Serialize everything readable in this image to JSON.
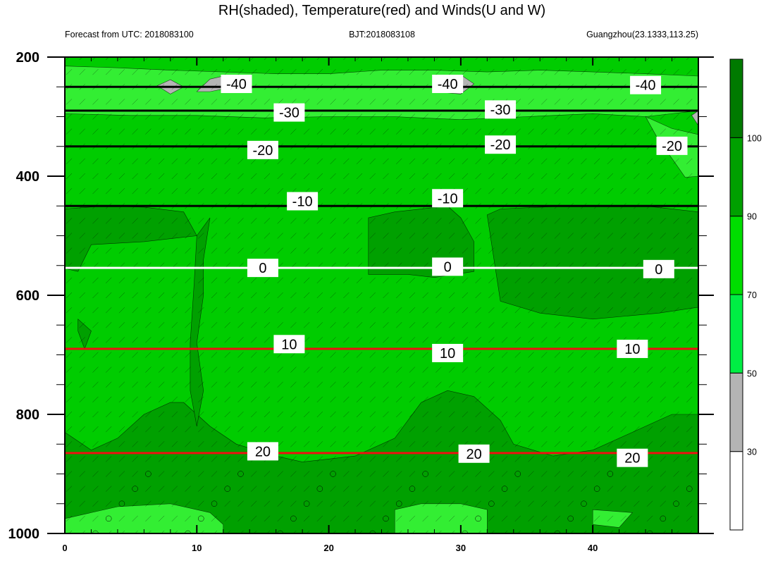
{
  "chart_data": {
    "type": "area",
    "title": "RH(shaded), Temperature(red) and Winds(U and W)",
    "subtitle_left": "Forecast from UTC: 2018083100",
    "subtitle_center": "BJT:2018083108",
    "subtitle_right": "Guangzhou(23.1333,113.25)",
    "x_range": [
      0,
      48
    ],
    "x_ticks": [
      0,
      10,
      20,
      30,
      40
    ],
    "y_range": [
      200,
      1000
    ],
    "y_ticks": [
      200,
      400,
      600,
      800,
      1000
    ],
    "colorbar": {
      "levels": [
        30,
        50,
        70,
        90,
        100
      ],
      "colors": [
        "#ffffff",
        "#b4b4b4",
        "#00ee44",
        "#00dd00",
        "#00a000",
        "#007a00"
      ]
    },
    "rh_background_color": "#00cc00",
    "rh_moist_color": "#00a000",
    "rh_humid_color": "#33ee33",
    "rh_dry_color": "#b4b4b4",
    "temperature_color": "#ee1111",
    "zero_isotherm_color": "#ffffff",
    "cold_isotherm_color": "#000000",
    "temperature_contours": [
      {
        "level": "-40",
        "x": [
          0,
          48
        ],
        "p": [
          250,
          250
        ],
        "labels": [
          {
            "x": 13,
            "p": 245
          },
          {
            "x": 29,
            "p": 245
          },
          {
            "x": 44,
            "p": 247
          }
        ]
      },
      {
        "level": "-30",
        "x": [
          0,
          48
        ],
        "p": [
          290,
          290
        ],
        "labels": [
          {
            "x": 17,
            "p": 293
          },
          {
            "x": 33,
            "p": 288
          }
        ]
      },
      {
        "level": "-20",
        "x": [
          0,
          48
        ],
        "p": [
          350,
          350
        ],
        "labels": [
          {
            "x": 15,
            "p": 356
          },
          {
            "x": 33,
            "p": 347
          },
          {
            "x": 46,
            "p": 349
          }
        ]
      },
      {
        "level": "-10",
        "x": [
          0,
          48
        ],
        "p": [
          450,
          450
        ],
        "labels": [
          {
            "x": 18,
            "p": 442
          },
          {
            "x": 29,
            "p": 437
          }
        ]
      },
      {
        "level": "0",
        "x": [
          0,
          48
        ],
        "p": [
          554,
          554
        ],
        "labels": [
          {
            "x": 15,
            "p": 554
          },
          {
            "x": 29,
            "p": 552
          },
          {
            "x": 45,
            "p": 556
          }
        ]
      },
      {
        "level": "10",
        "x": [
          0,
          48
        ],
        "p": [
          690,
          690
        ],
        "labels": [
          {
            "x": 17,
            "p": 682
          },
          {
            "x": 29,
            "p": 697
          },
          {
            "x": 43,
            "p": 690
          }
        ]
      },
      {
        "level": "20",
        "x": [
          0,
          48
        ],
        "p": [
          865,
          865
        ],
        "labels": [
          {
            "x": 15,
            "p": 862
          },
          {
            "x": 31,
            "p": 866
          },
          {
            "x": 43,
            "p": 873
          }
        ]
      }
    ]
  }
}
